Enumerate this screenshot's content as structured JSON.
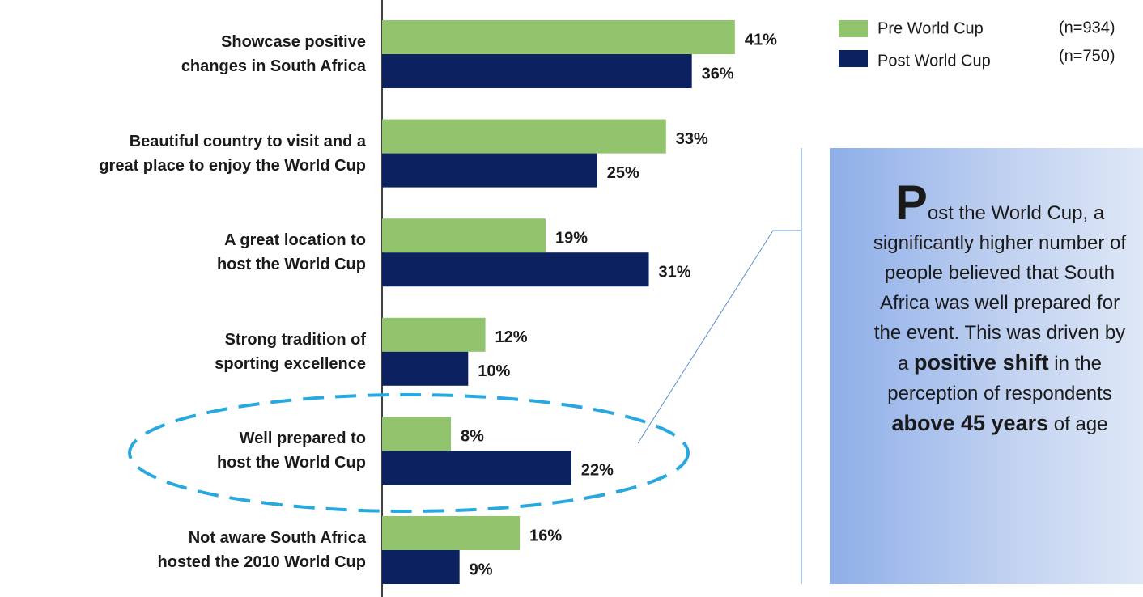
{
  "chart_data": {
    "type": "bar",
    "orientation": "horizontal",
    "categories": [
      "Showcase positive\nchanges in South Africa",
      "Beautiful country to visit and a\ngreat place to enjoy the World Cup",
      "A great location to\nhost the World Cup",
      "Strong tradition of\nsporting excellence",
      "Well prepared to\nhost the World Cup",
      "Not aware South Africa\nhosted the 2010 World Cup"
    ],
    "series": [
      {
        "name": "Pre World Cup",
        "sample": "(n=934)",
        "color": "#92c36d",
        "values": [
          41,
          33,
          19,
          12,
          8,
          16
        ],
        "value_labels": [
          "41%",
          "33%",
          "19%",
          "12%",
          "8%",
          "16%"
        ]
      },
      {
        "name": "Post World Cup",
        "sample": "(n=750)",
        "color": "#0c2260",
        "values": [
          36,
          25,
          31,
          10,
          22,
          9
        ],
        "value_labels": [
          "36%",
          "25%",
          "31%",
          "10%",
          "22%",
          "9%"
        ]
      }
    ],
    "legend": "top-right",
    "annotation": {
      "dropcap": "P",
      "parts": [
        {
          "text": "ost the World Cup, a significantly higher number of people believed that South Africa was well prepared for the event. This was driven by a ",
          "bold": false
        },
        {
          "text": "positive shift",
          "bold": true
        },
        {
          "text": " in the perception of respondents ",
          "bold": false
        },
        {
          "text": "above 45 years",
          "bold": true
        },
        {
          "text": " of age",
          "bold": false
        }
      ]
    }
  }
}
